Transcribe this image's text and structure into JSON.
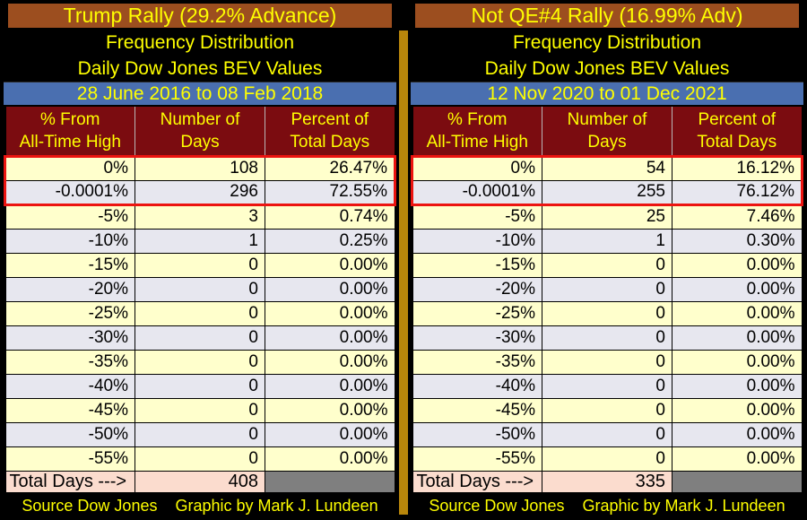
{
  "colors": {
    "title_bg": "#9c4e1f",
    "date_bg": "#4a6fb0",
    "header_bg": "#7b0c10",
    "row_cream": "#ffffcc",
    "row_gray": "#e7e7ef",
    "total_bg": "#fbdcce",
    "total_empty_bg": "#7f7f7f",
    "highlight_border": "#ec1410",
    "divider_gold": "#b8860b",
    "text_yellow": "#ffff00"
  },
  "tables": [
    {
      "title": "Trump Rally (29.2% Advance)",
      "subtitle1": "Frequency Distribution",
      "subtitle2": "Daily Dow Jones BEV Values",
      "date_range": "28 June 2016 to 08 Feb 2018",
      "columns": [
        {
          "line1": "% From",
          "line2": "All-Time High"
        },
        {
          "line1": "Number of",
          "line2": "Days"
        },
        {
          "line1": "Percent of",
          "line2": "Total Days"
        }
      ],
      "rows": [
        [
          "0%",
          "108",
          "26.47%"
        ],
        [
          "-0.0001%",
          "296",
          "72.55%"
        ],
        [
          "-5%",
          "3",
          "0.74%"
        ],
        [
          "-10%",
          "1",
          "0.25%"
        ],
        [
          "-15%",
          "0",
          "0.00%"
        ],
        [
          "-20%",
          "0",
          "0.00%"
        ],
        [
          "-25%",
          "0",
          "0.00%"
        ],
        [
          "-30%",
          "0",
          "0.00%"
        ],
        [
          "-35%",
          "0",
          "0.00%"
        ],
        [
          "-40%",
          "0",
          "0.00%"
        ],
        [
          "-45%",
          "0",
          "0.00%"
        ],
        [
          "-50%",
          "0",
          "0.00%"
        ],
        [
          "-55%",
          "0",
          "0.00%"
        ]
      ],
      "total_label": "Total Days --->",
      "total_value": "408",
      "footer_source": "Source Dow Jones",
      "footer_credit": "Graphic by Mark J. Lundeen"
    },
    {
      "title": "Not QE#4 Rally (16.99% Adv)",
      "subtitle1": "Frequency Distribution",
      "subtitle2": "Daily Dow Jones BEV Values",
      "date_range": "12 Nov 2020 to 01 Dec 2021",
      "columns": [
        {
          "line1": "% From",
          "line2": "All-Time High"
        },
        {
          "line1": "Number of",
          "line2": "Days"
        },
        {
          "line1": "Percent of",
          "line2": "Total Days"
        }
      ],
      "rows": [
        [
          "0%",
          "54",
          "16.12%"
        ],
        [
          "-0.0001%",
          "255",
          "76.12%"
        ],
        [
          "-5%",
          "25",
          "7.46%"
        ],
        [
          "-10%",
          "1",
          "0.30%"
        ],
        [
          "-15%",
          "0",
          "0.00%"
        ],
        [
          "-20%",
          "0",
          "0.00%"
        ],
        [
          "-25%",
          "0",
          "0.00%"
        ],
        [
          "-30%",
          "0",
          "0.00%"
        ],
        [
          "-35%",
          "0",
          "0.00%"
        ],
        [
          "-40%",
          "0",
          "0.00%"
        ],
        [
          "-45%",
          "0",
          "0.00%"
        ],
        [
          "-50%",
          "0",
          "0.00%"
        ],
        [
          "-55%",
          "0",
          "0.00%"
        ]
      ],
      "total_label": "Total Days --->",
      "total_value": "335",
      "footer_source": "Source Dow Jones",
      "footer_credit": "Graphic by Mark J. Lundeen"
    }
  ],
  "chart_data": [
    {
      "type": "table",
      "title": "Trump Rally (29.2% Advance)",
      "subtitle": "Frequency Distribution - Daily Dow Jones BEV Values",
      "date_range": "28 June 2016 to 08 Feb 2018",
      "columns": [
        "% From All-Time High",
        "Number of Days",
        "Percent of Total Days"
      ],
      "categories": [
        "0%",
        "-0.0001%",
        "-5%",
        "-10%",
        "-15%",
        "-20%",
        "-25%",
        "-30%",
        "-35%",
        "-40%",
        "-45%",
        "-50%",
        "-55%"
      ],
      "series": [
        {
          "name": "Number of Days",
          "values": [
            108,
            296,
            3,
            1,
            0,
            0,
            0,
            0,
            0,
            0,
            0,
            0,
            0
          ]
        },
        {
          "name": "Percent of Total Days",
          "values": [
            26.47,
            72.55,
            0.74,
            0.25,
            0,
            0,
            0,
            0,
            0,
            0,
            0,
            0,
            0
          ]
        }
      ],
      "total_days": 408,
      "highlighted_rows": [
        0,
        1
      ]
    },
    {
      "type": "table",
      "title": "Not QE#4 Rally (16.99% Adv)",
      "subtitle": "Frequency Distribution - Daily Dow Jones BEV Values",
      "date_range": "12 Nov 2020 to 01 Dec 2021",
      "columns": [
        "% From All-Time High",
        "Number of Days",
        "Percent of Total Days"
      ],
      "categories": [
        "0%",
        "-0.0001%",
        "-5%",
        "-10%",
        "-15%",
        "-20%",
        "-25%",
        "-30%",
        "-35%",
        "-40%",
        "-45%",
        "-50%",
        "-55%"
      ],
      "series": [
        {
          "name": "Number of Days",
          "values": [
            54,
            255,
            25,
            1,
            0,
            0,
            0,
            0,
            0,
            0,
            0,
            0,
            0
          ]
        },
        {
          "name": "Percent of Total Days",
          "values": [
            16.12,
            76.12,
            7.46,
            0.3,
            0,
            0,
            0,
            0,
            0,
            0,
            0,
            0,
            0
          ]
        }
      ],
      "total_days": 335,
      "highlighted_rows": [
        0,
        1
      ]
    }
  ]
}
